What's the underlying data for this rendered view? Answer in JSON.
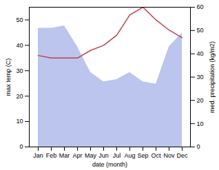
{
  "chart_data": {
    "type": "line",
    "xlabel": "date (month)",
    "ylabel": "max temp (C)",
    "y2label": "med. precipitation (kg/m2)",
    "categories": [
      "Jan",
      "Feb",
      "Mar",
      "Apr",
      "May",
      "Jun",
      "Jul",
      "Aug",
      "Sep",
      "Oct",
      "Nov",
      "Dec"
    ],
    "series": [
      {
        "type": "area",
        "axis": "y2",
        "color": "#bbc5ee",
        "values": [
          51,
          51,
          52,
          43,
          32,
          28,
          29,
          32,
          28,
          27,
          43,
          49
        ]
      },
      {
        "type": "line",
        "color": "#c0404a",
        "values": [
          36,
          35,
          35,
          35,
          38,
          40,
          44,
          52,
          55,
          50,
          46,
          43
        ]
      }
    ],
    "ylim": [
      0,
      55
    ],
    "yticks": [
      0,
      10,
      20,
      30,
      40,
      50
    ],
    "y2lim": [
      0,
      60
    ],
    "y2ticks": [
      0,
      10,
      20,
      30,
      40,
      50,
      60
    ],
    "grid": false
  }
}
